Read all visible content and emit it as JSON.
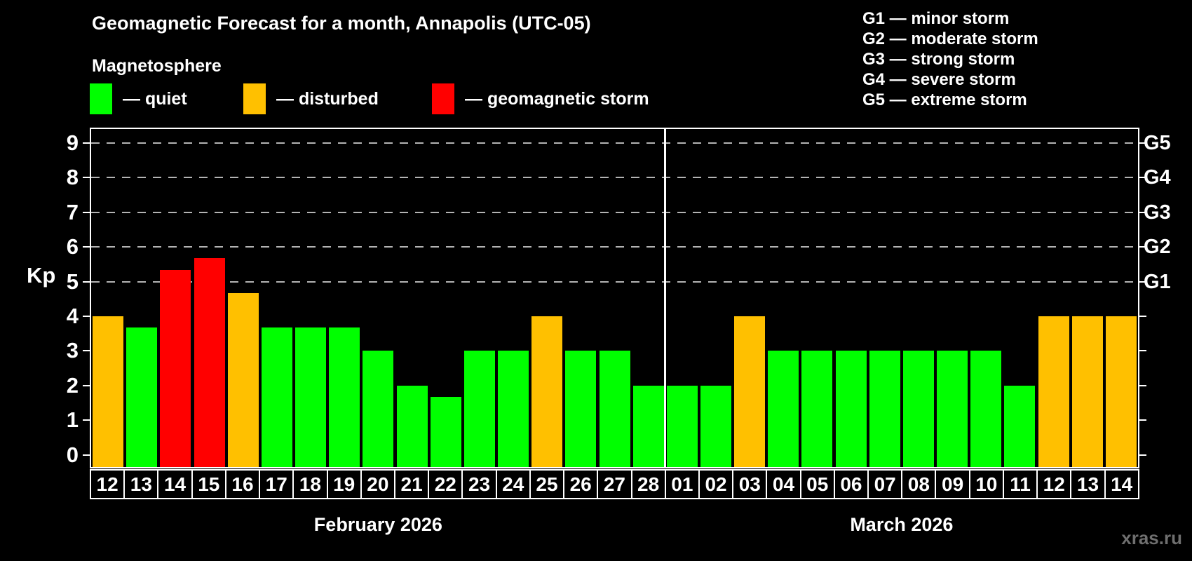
{
  "title": "Geomagnetic Forecast for a month, Annapolis (UTC-05)",
  "subtitle": "Magnetosphere",
  "watermark": "xras.ru",
  "colors": {
    "quiet": "#00ff00",
    "disturbed": "#ffc000",
    "storm": "#ff0000",
    "grid": "#b3b3b3",
    "axis": "#ffffff",
    "background": "#000000"
  },
  "legend": {
    "items": [
      {
        "status": "quiet",
        "label": "— quiet"
      },
      {
        "status": "disturbed",
        "label": "— disturbed"
      },
      {
        "status": "storm",
        "label": "— geomagnetic storm"
      }
    ]
  },
  "storm_legend": [
    "G1 — minor storm",
    "G2 — moderate storm",
    "G3 — strong storm",
    "G4 — severe storm",
    "G5 — extreme storm"
  ],
  "chart_data": {
    "type": "bar",
    "ylabel": "Kp",
    "ylim": [
      -0.35,
      9.4
    ],
    "y_ticks": [
      0,
      1,
      2,
      3,
      4,
      5,
      6,
      7,
      8,
      9
    ],
    "gridlines_kp": [
      5,
      6,
      7,
      8,
      9
    ],
    "right_axis_labels": [
      {
        "kp": 5,
        "label": "G1"
      },
      {
        "kp": 6,
        "label": "G2"
      },
      {
        "kp": 7,
        "label": "G3"
      },
      {
        "kp": 8,
        "label": "G4"
      },
      {
        "kp": 9,
        "label": "G5"
      }
    ],
    "legend_position": "top",
    "grid": "dashed horizontal at storm levels only",
    "months": [
      {
        "label": "February 2026",
        "days": [
          {
            "day": "12",
            "kp": 4.0,
            "status": "disturbed"
          },
          {
            "day": "13",
            "kp": 3.67,
            "status": "quiet"
          },
          {
            "day": "14",
            "kp": 5.33,
            "status": "storm"
          },
          {
            "day": "15",
            "kp": 5.67,
            "status": "storm"
          },
          {
            "day": "16",
            "kp": 4.67,
            "status": "disturbed"
          },
          {
            "day": "17",
            "kp": 3.67,
            "status": "quiet"
          },
          {
            "day": "18",
            "kp": 3.67,
            "status": "quiet"
          },
          {
            "day": "19",
            "kp": 3.67,
            "status": "quiet"
          },
          {
            "day": "20",
            "kp": 3.0,
            "status": "quiet"
          },
          {
            "day": "21",
            "kp": 2.0,
            "status": "quiet"
          },
          {
            "day": "22",
            "kp": 1.67,
            "status": "quiet"
          },
          {
            "day": "23",
            "kp": 3.0,
            "status": "quiet"
          },
          {
            "day": "24",
            "kp": 3.0,
            "status": "quiet"
          },
          {
            "day": "25",
            "kp": 4.0,
            "status": "disturbed"
          },
          {
            "day": "26",
            "kp": 3.0,
            "status": "quiet"
          },
          {
            "day": "27",
            "kp": 3.0,
            "status": "quiet"
          },
          {
            "day": "28",
            "kp": 2.0,
            "status": "quiet"
          }
        ]
      },
      {
        "label": "March 2026",
        "days": [
          {
            "day": "01",
            "kp": 2.0,
            "status": "quiet"
          },
          {
            "day": "02",
            "kp": 2.0,
            "status": "quiet"
          },
          {
            "day": "03",
            "kp": 4.0,
            "status": "disturbed"
          },
          {
            "day": "04",
            "kp": 3.0,
            "status": "quiet"
          },
          {
            "day": "05",
            "kp": 3.0,
            "status": "quiet"
          },
          {
            "day": "06",
            "kp": 3.0,
            "status": "quiet"
          },
          {
            "day": "07",
            "kp": 3.0,
            "status": "quiet"
          },
          {
            "day": "08",
            "kp": 3.0,
            "status": "quiet"
          },
          {
            "day": "09",
            "kp": 3.0,
            "status": "quiet"
          },
          {
            "day": "10",
            "kp": 3.0,
            "status": "quiet"
          },
          {
            "day": "11",
            "kp": 2.0,
            "status": "quiet"
          },
          {
            "day": "12",
            "kp": 4.0,
            "status": "disturbed"
          },
          {
            "day": "13",
            "kp": 4.0,
            "status": "disturbed"
          },
          {
            "day": "14",
            "kp": 4.0,
            "status": "disturbed"
          }
        ]
      }
    ]
  }
}
